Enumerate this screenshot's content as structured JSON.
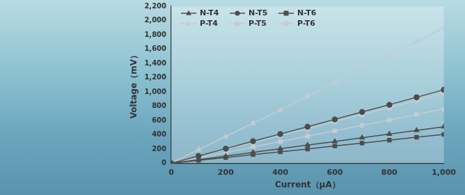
{
  "chart_data": {
    "type": "line",
    "x_label": "Current（μA）",
    "y_label": "Voltage（mV）",
    "x": [
      0,
      100,
      200,
      300,
      400,
      500,
      600,
      700,
      800,
      900,
      1000
    ],
    "xlim": [
      0,
      1000
    ],
    "xticks": [
      0,
      200,
      400,
      600,
      800,
      1000
    ],
    "ylim": [
      0,
      2200
    ],
    "yticks": [
      0,
      200,
      400,
      600,
      800,
      1000,
      1200,
      1400,
      1600,
      1800,
      2000,
      2200
    ],
    "grid": false,
    "legend": "upper left",
    "series": [
      {
        "name": "N-T4",
        "color": "#4d4d4d",
        "marker": "triangle",
        "line_style": "solid",
        "values": [
          0,
          50,
          100,
          152,
          203,
          255,
          305,
          357,
          408,
          460,
          512
        ]
      },
      {
        "name": "N-T5",
        "color": "#4d4d4d",
        "marker": "circle",
        "line_style": "solid",
        "values": [
          0,
          102,
          205,
          308,
          410,
          512,
          615,
          718,
          820,
          925,
          1030
        ]
      },
      {
        "name": "N-T6",
        "color": "#4d4d4d",
        "marker": "square",
        "line_style": "solid",
        "values": [
          0,
          40,
          80,
          120,
          160,
          200,
          242,
          283,
          324,
          365,
          405
        ]
      },
      {
        "name": "P-T4",
        "color": "#c3ccd0",
        "marker": "triangle",
        "line_style": "solid",
        "values": [
          0,
          190,
          375,
          560,
          745,
          935,
          1125,
          1320,
          1510,
          1705,
          1900
        ]
      },
      {
        "name": "P-T5",
        "color": "#c3ccd0",
        "marker": "circle",
        "line_style": "solid",
        "values": [
          0,
          98,
          195,
          292,
          390,
          488,
          585,
          683,
          780,
          880,
          980
        ]
      },
      {
        "name": "P-T6",
        "color": "#c3ccd0",
        "marker": "square",
        "line_style": "solid",
        "values": [
          0,
          75,
          150,
          228,
          305,
          380,
          455,
          530,
          605,
          685,
          760
        ]
      }
    ]
  }
}
